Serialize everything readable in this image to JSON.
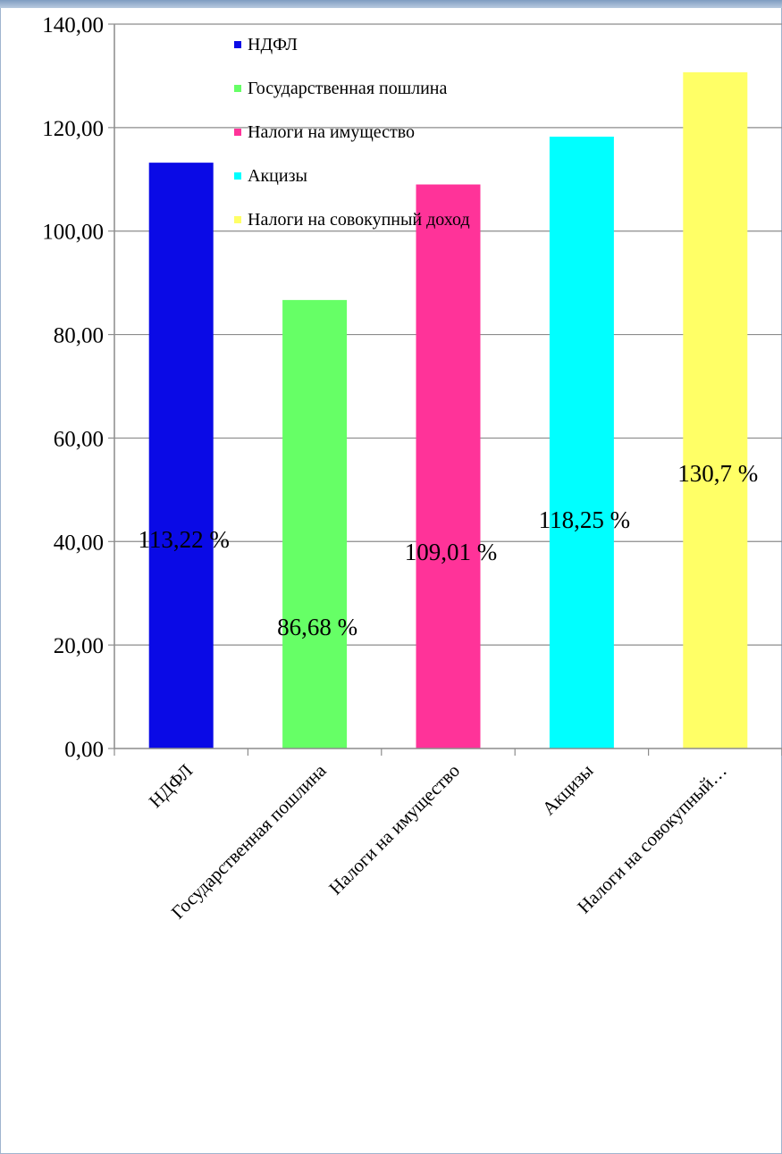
{
  "chart_data": {
    "type": "bar",
    "title": "",
    "xlabel": "",
    "ylabel": "",
    "ylim": [
      0,
      140
    ],
    "y_ticks": [
      "0,00",
      "20,00",
      "40,00",
      "60,00",
      "80,00",
      "100,00",
      "120,00",
      "140,00"
    ],
    "grid": true,
    "legend_position": "top-center",
    "categories": [
      "НДФЛ",
      "Государственная пошлина",
      "Налоги на имущество",
      "Акцизы",
      "Налоги на совокупный…"
    ],
    "legend": [
      "НДФЛ",
      "Государственная пошлина",
      "Налоги на имущество",
      "Акцизы",
      "Налоги на совокупный доход"
    ],
    "values": [
      113.22,
      86.68,
      109.01,
      118.25,
      130.7
    ],
    "data_labels": [
      "113,22 %",
      "86,68 %",
      "109,01 %",
      "118,25 %",
      "130,7 %"
    ],
    "colors": [
      "#0a0ae6",
      "#66ff66",
      "#ff3399",
      "#00ffff",
      "#ffff66"
    ]
  }
}
